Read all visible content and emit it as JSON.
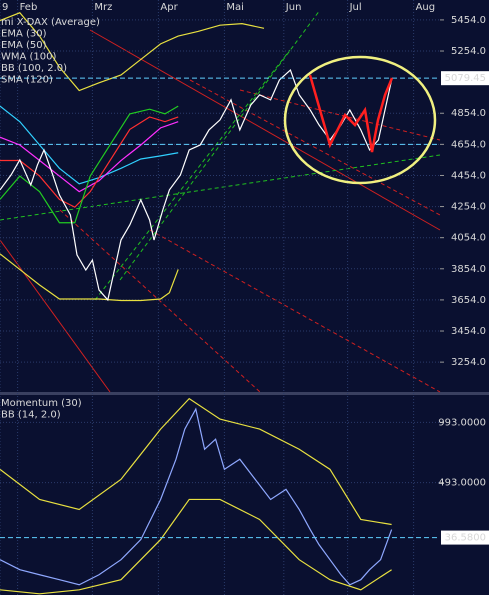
{
  "chart_data": [
    {
      "type": "line",
      "legend": [
        {
          "label": "mi X-DAX (Average)",
          "color": "#ffffff"
        },
        {
          "label": "EMA (30)",
          "color": "#22cc22"
        },
        {
          "label": "EMA (50)",
          "color": "#ff3030"
        },
        {
          "label": "WMA (100)",
          "color": "#ff30ff"
        },
        {
          "label": "BB (100, 2.0)",
          "color": "#e8e040"
        },
        {
          "label": "SMA (120)",
          "color": "#30d0ff"
        }
      ],
      "xlim": [
        0,
        200
      ],
      "xticks": [
        {
          "value": 0,
          "label": "9"
        },
        {
          "value": 8,
          "label": "Feb"
        },
        {
          "value": 42,
          "label": "Mrz"
        },
        {
          "value": 72,
          "label": "Apr"
        },
        {
          "value": 102,
          "label": "Mai"
        },
        {
          "value": 129,
          "label": "Jun"
        },
        {
          "value": 158,
          "label": "Jul"
        },
        {
          "value": 188,
          "label": "Aug"
        }
      ],
      "ylim": [
        3062,
        5582
      ],
      "yticks": [
        {
          "value": 5454,
          "label": "5454.0"
        },
        {
          "value": 5254,
          "label": "5254.0"
        },
        {
          "value": 4854,
          "label": "4854.0"
        },
        {
          "value": 4654,
          "label": "4654.0"
        },
        {
          "value": 4454,
          "label": "4454.0"
        },
        {
          "value": 4254,
          "label": "4254.0"
        },
        {
          "value": 4054,
          "label": "4054.0"
        },
        {
          "value": 3854,
          "label": "3854.0"
        },
        {
          "value": 3654,
          "label": "3654.0"
        },
        {
          "value": 3454,
          "label": "3454.0"
        },
        {
          "value": 3254,
          "label": "3254.0"
        }
      ],
      "marker": 5079.45,
      "series": [
        {
          "color": "#e8e040",
          "x": [
            0,
            9,
            18,
            27,
            36,
            45,
            55,
            64,
            73,
            81,
            90,
            100,
            110,
            120
          ],
          "values": [
            5450,
            5500,
            5350,
            5150,
            5000,
            5050,
            5100,
            5200,
            5300,
            5350,
            5380,
            5420,
            5430,
            5400
          ]
        },
        {
          "color": "#e8e040",
          "x": [
            0,
            9,
            18,
            23,
            27,
            36,
            45,
            55,
            64,
            73,
            77,
            81
          ],
          "values": [
            3950,
            3850,
            3750,
            3700,
            3660,
            3660,
            3660,
            3650,
            3650,
            3660,
            3700,
            3850
          ]
        },
        {
          "color": "#30d0ff",
          "x": [
            0,
            9,
            18,
            27,
            36,
            45,
            55,
            64,
            73,
            81
          ],
          "values": [
            4900,
            4800,
            4650,
            4500,
            4400,
            4440,
            4500,
            4560,
            4580,
            4600
          ]
        },
        {
          "color": "#ff30ff",
          "x": [
            0,
            9,
            18,
            27,
            36,
            45,
            55,
            64,
            73,
            81
          ],
          "values": [
            4700,
            4650,
            4550,
            4450,
            4350,
            4420,
            4550,
            4650,
            4760,
            4800
          ]
        },
        {
          "color": "#ff3030",
          "x": [
            0,
            9,
            18,
            27,
            34,
            41,
            50,
            59,
            68,
            75,
            81
          ],
          "values": [
            4550,
            4550,
            4450,
            4300,
            4250,
            4350,
            4550,
            4750,
            4830,
            4800,
            4830
          ]
        },
        {
          "color": "#22cc22",
          "x": [
            0,
            9,
            18,
            27,
            34,
            41,
            50,
            59,
            68,
            75,
            81
          ],
          "values": [
            4300,
            4450,
            4350,
            4150,
            4150,
            4450,
            4650,
            4850,
            4880,
            4850,
            4900
          ]
        },
        {
          "color": "#ffffff",
          "x": [
            0,
            5,
            9,
            14,
            17,
            20,
            24,
            27,
            32,
            35,
            39,
            42,
            45,
            49,
            52,
            55,
            59,
            64,
            68,
            70,
            74,
            77,
            82,
            86,
            91,
            95,
            100,
            105,
            109,
            114,
            118,
            123,
            127,
            132,
            136,
            141,
            145,
            150,
            155,
            159,
            164,
            168,
            172,
            175,
            178
          ],
          "values": [
            4361,
            4457,
            4554,
            4393,
            4521,
            4618,
            4457,
            4329,
            4200,
            3943,
            3846,
            3910,
            3718,
            3654,
            3846,
            4039,
            4136,
            4297,
            4168,
            4039,
            4232,
            4361,
            4457,
            4618,
            4650,
            4747,
            4811,
            4940,
            4747,
            4907,
            4972,
            4940,
            5068,
            5132,
            4972,
            4875,
            4779,
            4682,
            4779,
            4875,
            4747,
            4618,
            4682,
            4875,
            5068
          ]
        }
      ]
    },
    {
      "type": "line",
      "legend": [
        {
          "label": "Momentum (30)",
          "color": "#9bb0ff"
        },
        {
          "label": "BB (14, 2.0)",
          "color": "#e8e040"
        }
      ],
      "xlim": [
        0,
        200
      ],
      "ylim": [
        -440,
        1220
      ],
      "yticks": [
        {
          "value": 993,
          "label": "993.0000"
        },
        {
          "value": 493,
          "label": "493.0000"
        }
      ],
      "marker": {
        "value": 36.58,
        "label": "36.5800"
      },
      "series": [
        {
          "color": "#e8e040",
          "x": [
            0,
            18,
            36,
            55,
            73,
            86,
            100,
            118,
            136,
            150,
            164,
            178
          ],
          "values": [
            603,
            353,
            270,
            520,
            937,
            1190,
            1020,
            937,
            770,
            603,
            187,
            145
          ]
        },
        {
          "color": "#e8e040",
          "x": [
            0,
            18,
            36,
            55,
            73,
            86,
            100,
            118,
            136,
            150,
            164,
            178
          ],
          "values": [
            -397,
            -430,
            -397,
            -313,
            20,
            353,
            353,
            187,
            -147,
            -313,
            -397,
            -230
          ]
        },
        {
          "color": "#8fa8ff",
          "x": [
            0,
            9,
            18,
            27,
            36,
            45,
            55,
            64,
            73,
            80,
            84,
            89,
            93,
            98,
            102,
            109,
            116,
            123,
            130,
            136,
            141,
            145,
            150,
            155,
            159,
            164,
            168,
            173,
            178
          ],
          "values": [
            -147,
            -230,
            -272,
            -313,
            -355,
            -272,
            -147,
            20,
            353,
            687,
            937,
            1103,
            770,
            853,
            603,
            687,
            520,
            353,
            437,
            270,
            103,
            -22,
            -147,
            -272,
            -355,
            -313,
            -230,
            -147,
            103
          ]
        }
      ]
    }
  ]
}
